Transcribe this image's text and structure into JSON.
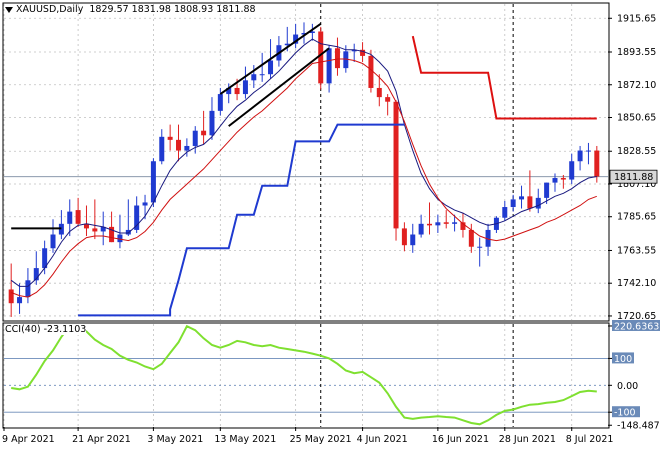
{
  "header": {
    "symbol": "XAUUSD,Daily",
    "ohlc": "1829.57 1831.98 1808.93 1811.88"
  },
  "indicator_header": {
    "label": "CCI(40)",
    "value": "-23.1103"
  },
  "colors": {
    "up_candle": "#1f3ad0",
    "down_candle": "#e02020",
    "fast_ma": "#1a1a80",
    "slow_ma": "#d01010",
    "support_line": "#1f3ad0",
    "resistance_line": "#dd1010",
    "cci_line": "#7fe030",
    "current_price_label_bg": "#d8d8d8"
  },
  "chart_data": [
    {
      "type": "candlestick",
      "title": "XAUUSD,Daily",
      "x_tick_labels": [
        "9 Apr 2021",
        "21 Apr 2021",
        "3 May 2021",
        "13 May 2021",
        "25 May 2021",
        "4 Jun 2021",
        "16 Jun 2021",
        "28 Jun 2021",
        "8 Jul 2021"
      ],
      "y_tick_labels": [
        "1915.65",
        "1893.55",
        "1872.10",
        "1850.65",
        "1828.55",
        "1807.10",
        "1785.65",
        "1763.55",
        "1742.10",
        "1720.65"
      ],
      "ylim": [
        1718,
        1925
      ],
      "grid": true,
      "current_price": "1811.88",
      "series": [
        {
          "name": "",
          "style": "ohlc",
          "open": [
            1738,
            1729,
            1733,
            1744,
            1752,
            1765,
            1774,
            1781,
            1790,
            1781,
            1778,
            1776,
            1779,
            1769,
            1774,
            1777,
            1793,
            1795,
            1822,
            1838,
            1836,
            1829,
            1832,
            1842,
            1839,
            1855,
            1866,
            1870,
            1866,
            1875,
            1879,
            1879,
            1888,
            1898,
            1899,
            1905,
            1906,
            1907,
            1873,
            1896,
            1883,
            1894,
            1895,
            1891,
            1870,
            1864,
            1861,
            1778,
            1767,
            1774,
            1781,
            1780,
            1782,
            1781,
            1782,
            1777,
            1766,
            1766,
            1777,
            1785,
            1792,
            1797,
            1799,
            1791,
            1798,
            1808,
            1811,
            1810,
            1822,
            1829,
            1829
          ],
          "high": [
            1755,
            1742,
            1752,
            1763,
            1770,
            1784,
            1790,
            1797,
            1798,
            1793,
            1797,
            1789,
            1789,
            1787,
            1797,
            1799,
            1800,
            1824,
            1843,
            1846,
            1846,
            1837,
            1845,
            1855,
            1864,
            1870,
            1873,
            1876,
            1884,
            1885,
            1893,
            1902,
            1904,
            1910,
            1912,
            1913,
            1912,
            1910,
            1898,
            1903,
            1898,
            1899,
            1900,
            1895,
            1879,
            1866,
            1862,
            1782,
            1781,
            1787,
            1795,
            1787,
            1790,
            1787,
            1788,
            1781,
            1772,
            1781,
            1786,
            1796,
            1800,
            1806,
            1816,
            1804,
            1808,
            1814,
            1813,
            1827,
            1832,
            1834,
            1832
          ],
          "low": [
            1720,
            1722,
            1729,
            1741,
            1748,
            1762,
            1771,
            1773,
            1779,
            1773,
            1771,
            1767,
            1769,
            1765,
            1773,
            1775,
            1784,
            1792,
            1820,
            1829,
            1822,
            1825,
            1827,
            1833,
            1836,
            1852,
            1860,
            1862,
            1863,
            1870,
            1874,
            1876,
            1884,
            1894,
            1896,
            1899,
            1901,
            1869,
            1867,
            1878,
            1880,
            1887,
            1887,
            1867,
            1858,
            1852,
            1770,
            1763,
            1762,
            1772,
            1774,
            1775,
            1778,
            1776,
            1772,
            1762,
            1753,
            1760,
            1775,
            1783,
            1789,
            1791,
            1789,
            1788,
            1794,
            1802,
            1804,
            1807,
            1816,
            1820,
            1808
          ],
          "close": [
            1729,
            1733,
            1744,
            1752,
            1765,
            1774,
            1781,
            1789,
            1781,
            1778,
            1776,
            1779,
            1769,
            1774,
            1777,
            1793,
            1795,
            1822,
            1838,
            1836,
            1829,
            1832,
            1842,
            1839,
            1855,
            1866,
            1870,
            1866,
            1875,
            1879,
            1879,
            1888,
            1898,
            1899,
            1905,
            1906,
            1907,
            1873,
            1896,
            1883,
            1894,
            1895,
            1891,
            1870,
            1864,
            1861,
            1778,
            1767,
            1774,
            1781,
            1780,
            1782,
            1781,
            1782,
            1777,
            1766,
            1766,
            1777,
            1785,
            1792,
            1797,
            1799,
            1791,
            1798,
            1808,
            1811,
            1810,
            1822,
            1829,
            1829,
            1812
          ]
        },
        {
          "name": "",
          "style": "line",
          "role": "fast moving average",
          "values": [
            1744,
            1740,
            1740,
            1745,
            1752,
            1760,
            1769,
            1776,
            1780,
            1781,
            1780,
            1779,
            1777,
            1775,
            1775,
            1780,
            1786,
            1795,
            1806,
            1816,
            1823,
            1828,
            1831,
            1833,
            1838,
            1845,
            1852,
            1858,
            1862,
            1867,
            1871,
            1876,
            1881,
            1887,
            1893,
            1898,
            1902,
            1899,
            1898,
            1897,
            1895,
            1895,
            1894,
            1892,
            1887,
            1881,
            1868,
            1846,
            1829,
            1814,
            1804,
            1797,
            1793,
            1790,
            1788,
            1785,
            1782,
            1780,
            1781,
            1783,
            1786,
            1789,
            1791,
            1793,
            1796,
            1799,
            1801,
            1804,
            1808,
            1811,
            1812
          ]
        },
        {
          "name": "",
          "style": "line",
          "role": "slow moving average",
          "values": [
            1736,
            1734,
            1733,
            1736,
            1741,
            1748,
            1756,
            1763,
            1768,
            1772,
            1773,
            1773,
            1772,
            1771,
            1770,
            1772,
            1776,
            1782,
            1790,
            1797,
            1802,
            1807,
            1812,
            1817,
            1823,
            1829,
            1835,
            1841,
            1846,
            1851,
            1855,
            1860,
            1865,
            1870,
            1876,
            1881,
            1886,
            1887,
            1888,
            1889,
            1889,
            1888,
            1886,
            1882,
            1877,
            1871,
            1861,
            1848,
            1833,
            1819,
            1807,
            1798,
            1791,
            1786,
            1781,
            1777,
            1773,
            1771,
            1770,
            1771,
            1773,
            1775,
            1777,
            1779,
            1782,
            1784,
            1787,
            1790,
            1793,
            1797,
            1799
          ]
        },
        {
          "name": "",
          "style": "step",
          "role": "lower channel",
          "values": [
            null,
            null,
            null,
            null,
            null,
            null,
            null,
            null,
            null,
            null,
            null,
            null,
            null,
            null,
            null,
            null,
            null,
            null,
            null,
            null,
            null,
            null,
            null,
            null,
            null,
            null,
            null,
            null,
            null,
            null,
            null,
            null,
            null,
            null,
            null,
            null,
            null,
            null,
            null,
            null,
            null,
            null,
            null,
            null,
            null,
            null,
            null,
            null,
            null,
            null,
            null,
            null,
            null,
            null,
            null,
            null,
            null,
            null,
            null,
            null,
            null,
            null,
            null,
            null,
            null,
            null,
            null,
            null,
            null,
            null,
            null
          ],
          "points": [
            {
              "bar": 8,
              "y": 1721
            },
            {
              "bar": 19,
              "y": 1721
            },
            {
              "bar": 19,
              "y": 1725
            },
            {
              "bar": 20,
              "y": 1744
            },
            {
              "bar": 21,
              "y": 1765
            },
            {
              "bar": 26,
              "y": 1765
            },
            {
              "bar": 27,
              "y": 1787
            },
            {
              "bar": 29,
              "y": 1787
            },
            {
              "bar": 30,
              "y": 1806
            },
            {
              "bar": 33,
              "y": 1806
            },
            {
              "bar": 34,
              "y": 1835
            },
            {
              "bar": 38,
              "y": 1835
            },
            {
              "bar": 39,
              "y": 1846
            },
            {
              "bar": 47,
              "y": 1846
            }
          ]
        },
        {
          "name": "",
          "style": "step",
          "role": "upper channel",
          "points": [
            {
              "bar": 48,
              "y": 1904
            },
            {
              "bar": 49,
              "y": 1880
            },
            {
              "bar": 57,
              "y": 1880
            },
            {
              "bar": 58,
              "y": 1850
            },
            {
              "bar": 70,
              "y": 1850
            }
          ]
        }
      ],
      "annotations": [
        {
          "kind": "trendline",
          "from": {
            "bar": 25,
            "y": 1866
          },
          "to": {
            "bar": 37,
            "y": 1912
          }
        },
        {
          "kind": "trendline",
          "from": {
            "bar": 26,
            "y": 1845
          },
          "to": {
            "bar": 38,
            "y": 1896
          }
        },
        {
          "kind": "horizontal-segment",
          "from": {
            "bar": 0,
            "y": 1778
          },
          "to": {
            "bar": 6,
            "y": 1778
          }
        },
        {
          "kind": "vertical-dashed",
          "bar": 37
        },
        {
          "kind": "vertical-dashed",
          "bar": 60
        }
      ]
    },
    {
      "type": "line",
      "title": "CCI(40) -23.1103",
      "y_tick_labels": [
        "220.6363",
        "100",
        "0.00",
        "-100",
        "-148.487"
      ],
      "ylim": [
        -155,
        228
      ],
      "reference_levels": [
        100,
        0,
        -100
      ],
      "series": [
        {
          "name": "CCI(40)",
          "values": [
            -10,
            -15,
            -5,
            40,
            90,
            130,
            180,
            220,
            215,
            200,
            170,
            150,
            135,
            110,
            95,
            85,
            70,
            60,
            80,
            120,
            160,
            220,
            205,
            175,
            150,
            140,
            150,
            165,
            160,
            150,
            145,
            150,
            140,
            135,
            130,
            125,
            118,
            110,
            100,
            80,
            55,
            45,
            50,
            30,
            10,
            -30,
            -80,
            -120,
            -125,
            -120,
            -118,
            -115,
            -118,
            -120,
            -130,
            -140,
            -145,
            -130,
            -110,
            -95,
            -90,
            -80,
            -72,
            -70,
            -65,
            -62,
            -55,
            -40,
            -25,
            -20,
            -23
          ]
        }
      ]
    }
  ]
}
